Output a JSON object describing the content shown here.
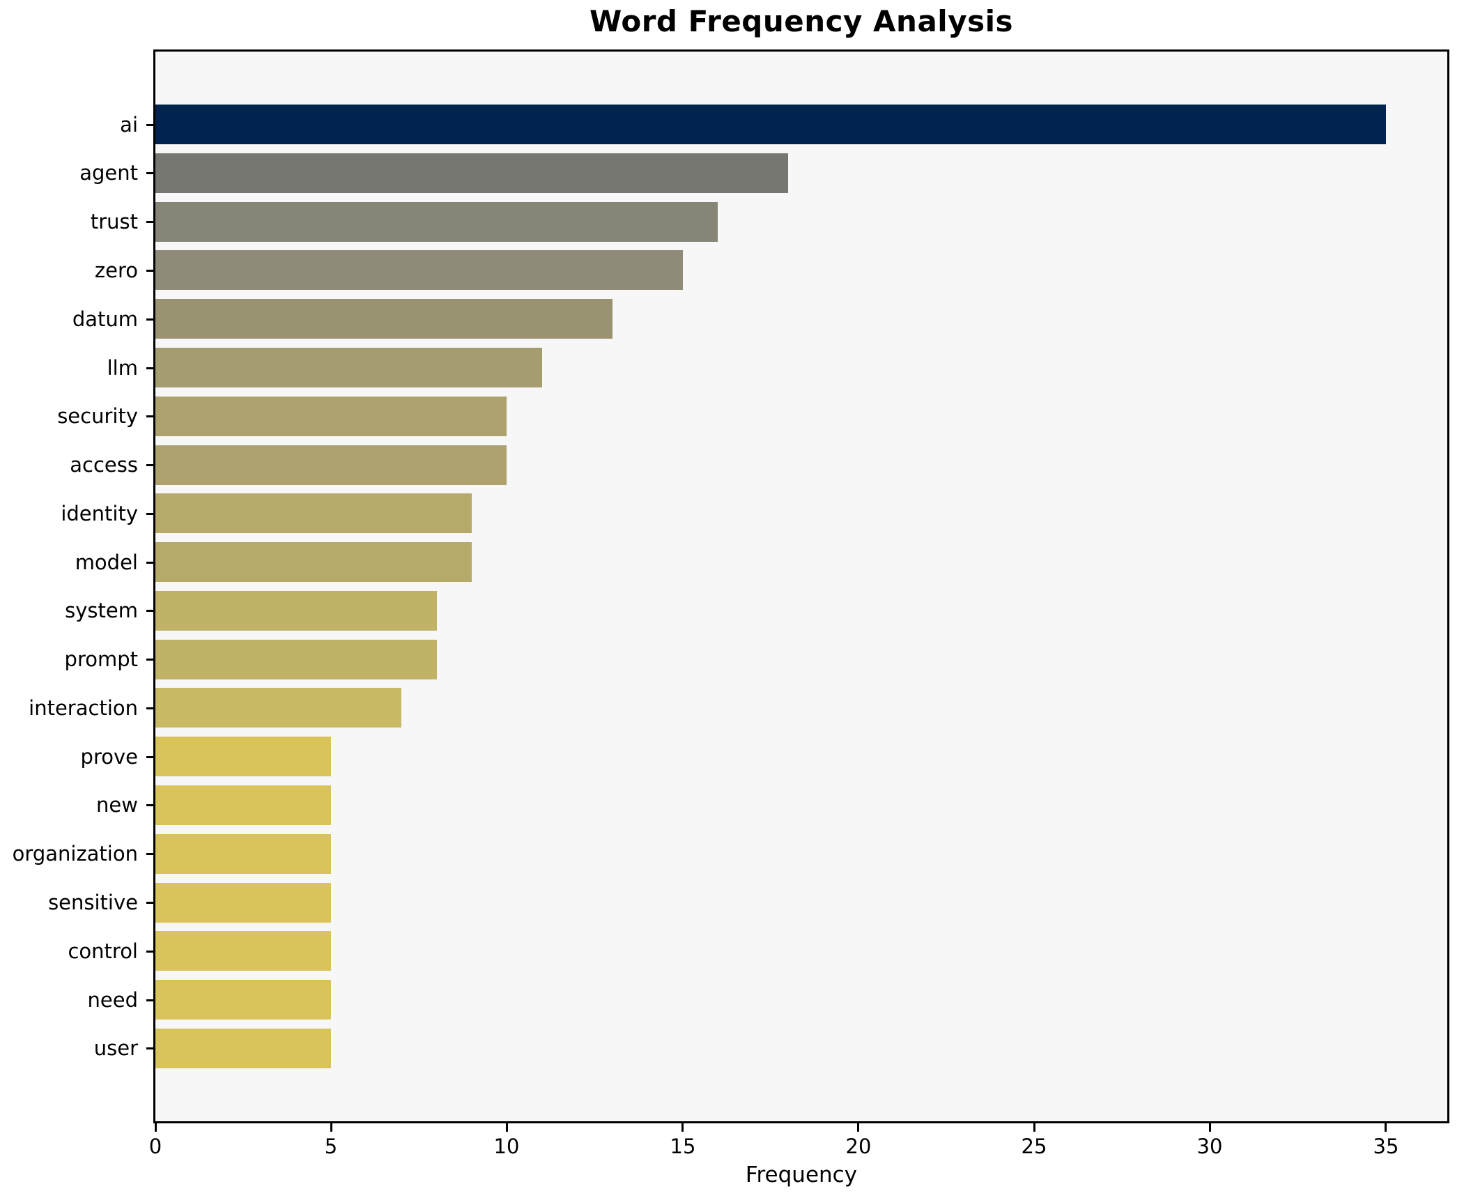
{
  "chart_data": {
    "type": "bar",
    "orientation": "horizontal",
    "title": "Word Frequency Analysis",
    "xlabel": "Frequency",
    "ylabel": "",
    "categories": [
      "ai",
      "agent",
      "trust",
      "zero",
      "datum",
      "llm",
      "security",
      "access",
      "identity",
      "model",
      "system",
      "prompt",
      "interaction",
      "prove",
      "new",
      "organization",
      "sensitive",
      "control",
      "need",
      "user"
    ],
    "values": [
      35,
      18,
      16,
      15,
      13,
      11,
      10,
      10,
      9,
      9,
      8,
      8,
      7,
      5,
      5,
      5,
      5,
      5,
      5,
      5
    ],
    "bar_colors": [
      "#02234E",
      "#777771",
      "#868578",
      "#8E8B78",
      "#9A9372",
      "#A59C70",
      "#ADA26E",
      "#ADA26E",
      "#B5AA6A",
      "#B5AA6A",
      "#C0B266",
      "#C0B266",
      "#C8B964",
      "#D9C45C",
      "#D9C45C",
      "#D9C45C",
      "#D9C45C",
      "#D9C45C",
      "#D9C45C",
      "#D9C45C"
    ],
    "xlim": [
      0,
      36.75
    ],
    "x_ticks": [
      0,
      5,
      10,
      15,
      20,
      25,
      30,
      35
    ],
    "grid": false,
    "legend": null,
    "plot_bg": "#F7F7F7",
    "fig_bg": "#FFFFFF",
    "spine_color": "#000000"
  }
}
